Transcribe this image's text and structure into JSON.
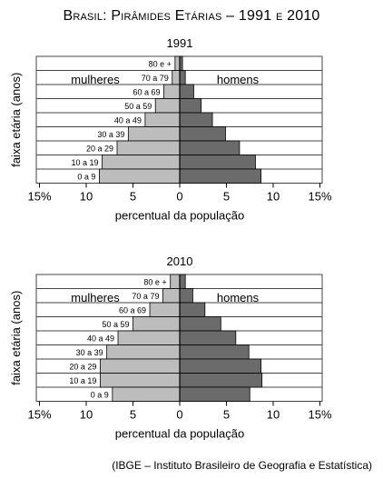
{
  "title": "Brasil: Pirâmides Etárias – 1991 e 2010",
  "source": "(IBGE – Instituto Brasileiro de Geografia e Estatística)",
  "colors": {
    "women": "#bdbdbd",
    "men": "#6b6b6b",
    "frame": "#444444"
  },
  "chart_data": [
    {
      "type": "bar",
      "title": "1991",
      "xlabel": "percentual da população",
      "ylabel": "faixa etária (anos)",
      "xlim": [
        -15,
        15
      ],
      "x_ticks": [
        "15%",
        "10",
        "5",
        "0",
        "5",
        "10",
        "15%"
      ],
      "categories": [
        "80 e +",
        "70 a 79",
        "60 a 69",
        "50 a 59",
        "40 a 49",
        "30 a 39",
        "20 a 29",
        "10 a 19",
        "0 a 9"
      ],
      "series": [
        {
          "name": "mulheres",
          "values": [
            0.5,
            0.8,
            1.7,
            2.6,
            3.7,
            5.5,
            6.7,
            8.3,
            8.6
          ]
        },
        {
          "name": "homens",
          "values": [
            0.3,
            0.6,
            1.5,
            2.3,
            3.5,
            4.9,
            6.4,
            8.1,
            8.7
          ]
        }
      ]
    },
    {
      "type": "bar",
      "title": "2010",
      "xlabel": "percentual da população",
      "ylabel": "faixa etária (anos)",
      "xlim": [
        -15,
        15
      ],
      "x_ticks": [
        "15%",
        "10",
        "5",
        "0",
        "5",
        "10",
        "15%"
      ],
      "categories": [
        "80 e +",
        "70 a 79",
        "60 a 69",
        "50 a 59",
        "40 a 49",
        "30 a 39",
        "20 a 29",
        "10 a 19",
        "0 a 9"
      ],
      "series": [
        {
          "name": "mulheres",
          "values": [
            1.0,
            1.8,
            3.2,
            5.0,
            6.6,
            7.8,
            8.5,
            8.5,
            7.2
          ]
        },
        {
          "name": "homens",
          "values": [
            0.6,
            1.4,
            2.7,
            4.4,
            6.0,
            7.4,
            8.7,
            8.8,
            7.5
          ]
        }
      ]
    }
  ]
}
